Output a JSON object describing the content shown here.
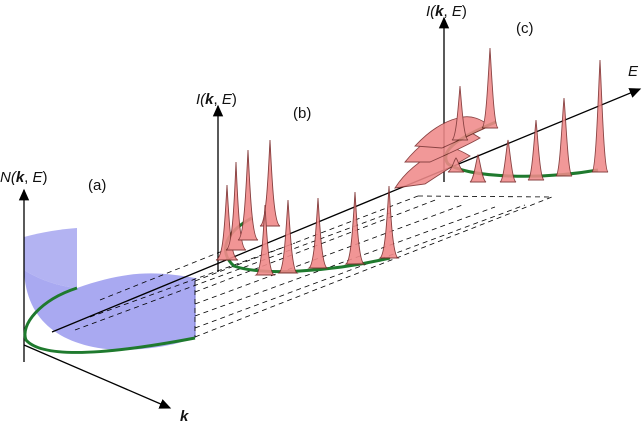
{
  "labels": {
    "panel_a": "(a)",
    "panel_b": "(b)",
    "panel_c": "(c)",
    "n_axis": {
      "prefix": "N(",
      "k": "k",
      "sep": ", ",
      "e": "E",
      "suffix": ")"
    },
    "i_axis_b": {
      "prefix": "I(",
      "k": "k",
      "sep": ", ",
      "e": "E",
      "suffix": ")"
    },
    "i_axis_c": {
      "prefix": "I(",
      "k": "k",
      "sep": ", ",
      "e": "E",
      "suffix": ")"
    },
    "energy_axis": "E",
    "momentum_axis": "k"
  },
  "colors": {
    "dispersion": "#1f7a2e",
    "dos_fill": "#9a9aee",
    "peak_fill": "#f08a8a",
    "peak_stroke": "#7a2a2a",
    "axis": "#000000",
    "dash": "#000000"
  }
}
